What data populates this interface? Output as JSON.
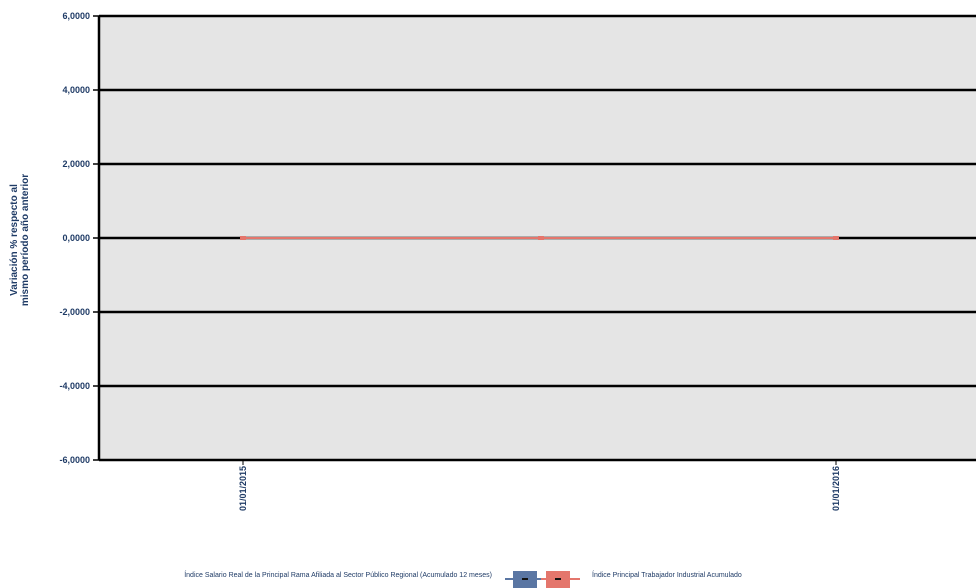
{
  "chart_data": {
    "type": "line",
    "title": "",
    "ylabel": [
      "Variación % respecto al",
      "mismo período año anterior"
    ],
    "xlabel": "",
    "x": [
      "01/01/2015",
      "01/07/2015",
      "01/01/2016"
    ],
    "x_tick_labels": [
      "01/01/2015",
      "01/01/2016"
    ],
    "ylim": [
      -6,
      6
    ],
    "y_ticks": [
      -6,
      -4,
      -2,
      0,
      2,
      4,
      6
    ],
    "y_tick_labels": [
      "-6,0000",
      "-4,0000",
      "-2,0000",
      "0,0000",
      "2,0000",
      "4,0000",
      "6,0000"
    ],
    "grid": true,
    "legend_position": "bottom",
    "series": [
      {
        "name": "Índice Salario Real de la Principal Rama Afiliada al Sector Público Regional (Acumulado 12 meses)",
        "color": "#5a76a3",
        "values": [
          0,
          0,
          0
        ]
      },
      {
        "name": "Índice Principal Trabajador Industrial Acumulado",
        "color": "#e4766c",
        "values": [
          0,
          0,
          0
        ]
      }
    ]
  }
}
